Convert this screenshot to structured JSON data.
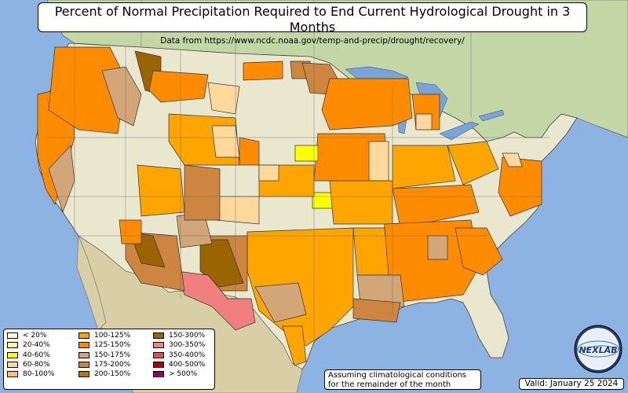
{
  "title": "Percent of Normal Precipitation Required to End Current Hydrological Drought in 3 Months",
  "subtitle": "Data from https://www.ncdc.noaa.gov/temp-and-precip/drought/recovery/",
  "legend": [
    {
      "label": "< 20%",
      "color": "#ffffe0"
    },
    {
      "label": "20-40%",
      "color": "#ffffa0"
    },
    {
      "label": "40-60%",
      "color": "#ffff00"
    },
    {
      "label": "60-80%",
      "color": "#ffd89b"
    },
    {
      "label": "80-100%",
      "color": "#ffc266"
    },
    {
      "label": "100-125%",
      "color": "#ffa500"
    },
    {
      "label": "125-150%",
      "color": "#ff8c00"
    },
    {
      "label": "150-175%",
      "color": "#d2a679"
    },
    {
      "label": "175-200%",
      "color": "#cd853f"
    },
    {
      "label": "200-150%",
      "color": "#b8731f"
    },
    {
      "label": "150-300%",
      "color": "#9a6400"
    },
    {
      "label": "300-350%",
      "color": "#f08080"
    },
    {
      "label": "350-400%",
      "color": "#e05050"
    },
    {
      "label": "400-500%",
      "color": "#aa0000"
    },
    {
      "label": "> 500%",
      "color": "#990066"
    }
  ],
  "note": {
    "line1": "Assuming climatological conditions",
    "line2": "for the remainder of the month"
  },
  "valid": "Valid: January 25 2024",
  "logo_text": "NEXLAB",
  "colors": {
    "ocean": "#8db3e2",
    "land": "#e9e8cf",
    "mexico": "#d8cfa6",
    "canada": "#c3d6a6",
    "lakes": "#7aa3d9"
  }
}
